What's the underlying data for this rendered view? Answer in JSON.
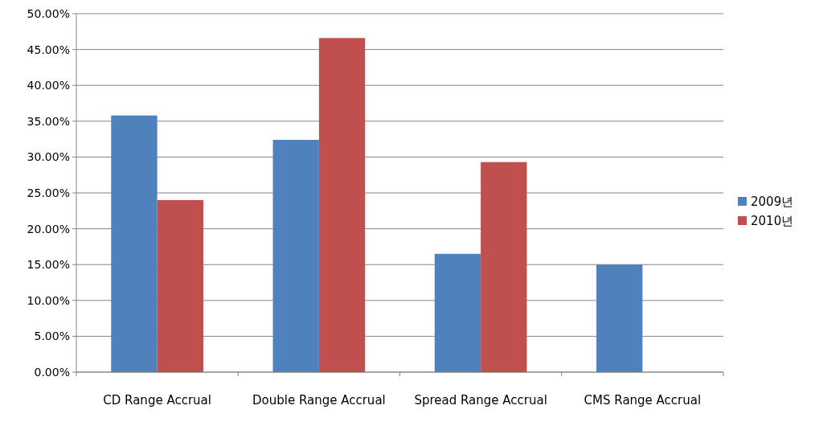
{
  "chart_data": {
    "type": "bar",
    "categories": [
      "CD Range Accrual",
      "Double Range Accrual",
      "Spread Range Accrual",
      "CMS Range Accrual"
    ],
    "series": [
      {
        "name": "2009년",
        "color": "#4f81bd",
        "values": [
          35.8,
          32.4,
          16.5,
          15.0
        ]
      },
      {
        "name": "2010년",
        "color": "#c0504d",
        "values": [
          24.0,
          46.6,
          29.3,
          null
        ]
      }
    ],
    "ylim": [
      0,
      50
    ],
    "yticks": [
      {
        "value": 0,
        "label": "0.00%"
      },
      {
        "value": 5,
        "label": "5.00%"
      },
      {
        "value": 10,
        "label": "10.00%"
      },
      {
        "value": 15,
        "label": "15.00%"
      },
      {
        "value": 20,
        "label": "20.00%"
      },
      {
        "value": 25,
        "label": "25.00%"
      },
      {
        "value": 30,
        "label": "30.00%"
      },
      {
        "value": 35,
        "label": "35.00%"
      },
      {
        "value": 40,
        "label": "40.00%"
      },
      {
        "value": 45,
        "label": "45.00%"
      },
      {
        "value": 50,
        "label": "50.00%"
      }
    ],
    "grid": "y",
    "legend": "right"
  }
}
